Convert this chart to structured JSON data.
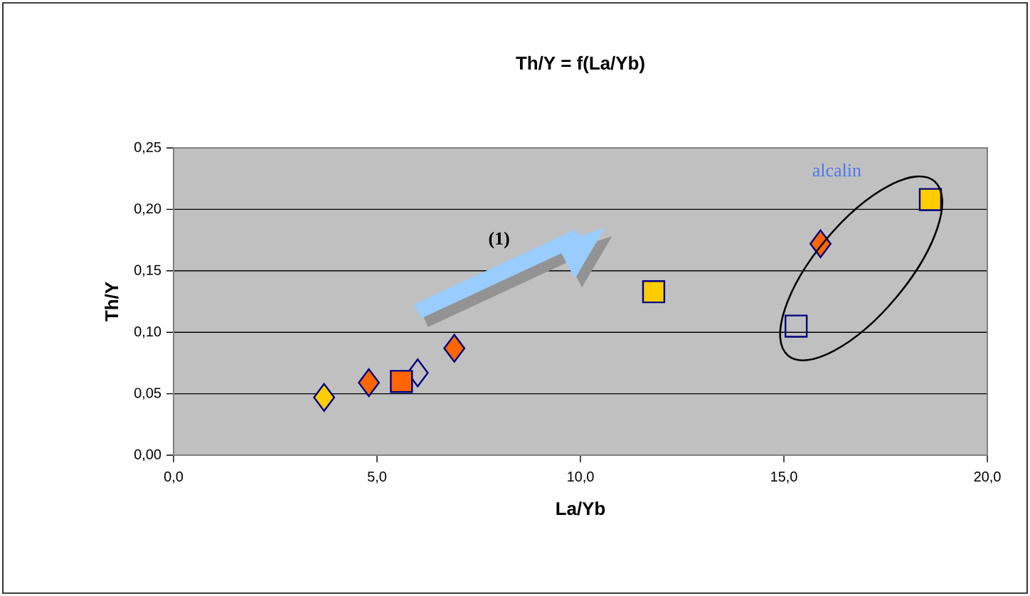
{
  "chart_data": {
    "type": "scatter",
    "title": "Th/Y = f(La/Yb)",
    "xlabel": "La/Yb",
    "ylabel": "Th/Y",
    "series": [
      {
        "color": "#ffcc00",
        "marker": "diamond",
        "x": [
          3.7
        ],
        "values": [
          0.047
        ]
      },
      {
        "color": "#ff6600",
        "marker": "diamond",
        "x": [
          4.8,
          6.9,
          15.9
        ],
        "values": [
          0.059,
          0.087,
          0.172
        ]
      },
      {
        "color": "#000080",
        "marker": "diamond",
        "x": [
          6.0
        ],
        "values": [
          0.067
        ]
      },
      {
        "color": "#ff6600",
        "marker": "square",
        "x": [
          5.6
        ],
        "values": [
          0.06
        ]
      },
      {
        "color": "#ffcc00",
        "marker": "square",
        "x": [
          11.8,
          18.6
        ],
        "values": [
          0.133,
          0.208
        ]
      },
      {
        "color": "#000080",
        "marker": "square",
        "x": [
          15.3
        ],
        "values": [
          0.105
        ]
      }
    ],
    "annotations": [
      "(1)",
      "alcalin"
    ],
    "xlim": [
      0,
      20
    ],
    "ylim": [
      0,
      0.25
    ],
    "xticks": [
      {
        "value": 0,
        "label": "0,0"
      },
      {
        "value": 5,
        "label": "5,0"
      },
      {
        "value": 10,
        "label": "10,0"
      },
      {
        "value": 15,
        "label": "15,0"
      },
      {
        "value": 20,
        "label": "20,0"
      }
    ],
    "yticks": [
      {
        "value": 0,
        "label": "0,00"
      },
      {
        "value": 0.05,
        "label": "0,05"
      },
      {
        "value": 0.1,
        "label": "0,10"
      },
      {
        "value": 0.15,
        "label": "0,15"
      },
      {
        "value": 0.2,
        "label": "0,20"
      },
      {
        "value": 0.25,
        "label": "0,25"
      }
    ],
    "grid": "y"
  }
}
